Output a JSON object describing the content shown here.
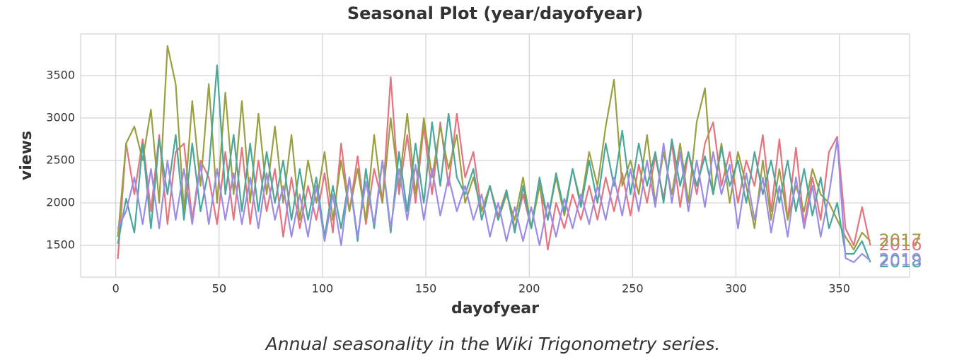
{
  "chart_data": {
    "type": "line",
    "title": "Seasonal Plot (year/dayofyear)",
    "xlabel": "dayofyear",
    "ylabel": "views",
    "caption": "Annual seasonality in the Wiki Trigonometry series.",
    "x": [
      1,
      5,
      9,
      13,
      17,
      21,
      25,
      29,
      33,
      37,
      41,
      45,
      49,
      53,
      57,
      61,
      65,
      69,
      73,
      77,
      81,
      85,
      89,
      93,
      97,
      101,
      105,
      109,
      113,
      117,
      121,
      125,
      129,
      133,
      137,
      141,
      145,
      149,
      153,
      157,
      161,
      165,
      169,
      173,
      177,
      181,
      185,
      189,
      193,
      197,
      201,
      205,
      209,
      213,
      217,
      221,
      225,
      229,
      233,
      237,
      241,
      245,
      249,
      253,
      257,
      261,
      265,
      269,
      273,
      277,
      281,
      285,
      289,
      293,
      297,
      301,
      305,
      309,
      313,
      317,
      321,
      325,
      329,
      333,
      337,
      341,
      345,
      349,
      353,
      357,
      361,
      365
    ],
    "series": [
      {
        "name": "2016",
        "color": "#e8737f",
        "values": [
          1340,
          2700,
          2100,
          2750,
          1900,
          2800,
          1750,
          2600,
          2700,
          1800,
          2500,
          2300,
          1750,
          2600,
          1800,
          2650,
          1750,
          2500,
          1900,
          2400,
          1600,
          2300,
          1700,
          2200,
          1800,
          2350,
          1650,
          2700,
          1900,
          2550,
          1750,
          2400,
          2000,
          3480,
          2100,
          2800,
          2000,
          2900,
          2100,
          2950,
          2200,
          3050,
          2300,
          2600,
          1900,
          2200,
          1850,
          2150,
          1700,
          2100,
          1700,
          2250,
          1450,
          2000,
          1700,
          2100,
          1800,
          2200,
          1800,
          2300,
          1900,
          2350,
          1850,
          2450,
          2000,
          2550,
          2050,
          2700,
          1950,
          2600,
          2100,
          2700,
          2950,
          2200,
          2600,
          2000,
          2500,
          2200,
          2800,
          1900,
          2750,
          1800,
          2650,
          1750,
          2300,
          1800,
          2600,
          2780,
          1700,
          1500,
          1950,
          1500
        ]
      },
      {
        "name": "2017",
        "color": "#9aa040",
        "values": [
          1600,
          2700,
          2900,
          2500,
          3100,
          2000,
          3850,
          3400,
          1900,
          3200,
          2200,
          3400,
          2000,
          3300,
          2100,
          3200,
          2000,
          3050,
          2100,
          2900,
          2000,
          2800,
          1800,
          2500,
          2000,
          2600,
          1800,
          2500,
          1900,
          2400,
          1800,
          2800,
          2000,
          3000,
          2200,
          3050,
          2100,
          3000,
          2300,
          2900,
          2400,
          2800,
          2000,
          2300,
          1900,
          2200,
          1800,
          2100,
          1800,
          2300,
          1700,
          2200,
          1800,
          2300,
          1850,
          2400,
          2000,
          2600,
          2200,
          2900,
          3450,
          2200,
          2500,
          2100,
          2800,
          2000,
          2600,
          2100,
          2700,
          2000,
          2950,
          3350,
          2100,
          2700,
          2000,
          2600,
          2200,
          1700,
          2500,
          1800,
          2400,
          1800,
          2200,
          1900,
          2400,
          2100,
          2000,
          1800,
          1600,
          1450,
          1650,
          1550
        ]
      },
      {
        "name": "2018",
        "color": "#4aa79c",
        "values": [
          1520,
          2050,
          1650,
          2700,
          1700,
          2750,
          2100,
          2800,
          1800,
          2700,
          1900,
          2400,
          3620,
          2100,
          2800,
          1900,
          2700,
          1900,
          2600,
          2000,
          2500,
          1800,
          2400,
          1800,
          2300,
          1600,
          2200,
          1700,
          2300,
          1550,
          2400,
          1700,
          2500,
          1650,
          2600,
          1900,
          2700,
          2000,
          2950,
          2200,
          3050,
          2300,
          2100,
          2400,
          1800,
          2200,
          1800,
          2150,
          1650,
          2200,
          1700,
          2300,
          1800,
          2350,
          1900,
          2400,
          1950,
          2500,
          2000,
          2700,
          2200,
          2850,
          2100,
          2700,
          2200,
          2600,
          2000,
          2750,
          2200,
          2600,
          2200,
          2550,
          2100,
          2650,
          2200,
          2500,
          2000,
          2600,
          2100,
          2500,
          2000,
          2500,
          1900,
          2400,
          1850,
          2300,
          1700,
          2000,
          1400,
          1400,
          1550,
          1300
        ]
      },
      {
        "name": "2019",
        "color": "#9b8ce8",
        "values": [
          1700,
          1900,
          2300,
          1750,
          2400,
          1700,
          2500,
          1800,
          2400,
          1750,
          2450,
          1750,
          2400,
          1800,
          2350,
          1750,
          2300,
          1700,
          2350,
          1800,
          2200,
          1600,
          2100,
          1600,
          2200,
          1550,
          2100,
          1500,
          2300,
          1600,
          2250,
          1750,
          2500,
          1700,
          2400,
          1800,
          2450,
          1800,
          2400,
          1850,
          2300,
          1900,
          2200,
          1800,
          2100,
          1600,
          2000,
          1550,
          1950,
          1550,
          1950,
          1500,
          2000,
          1600,
          2050,
          1700,
          2100,
          1750,
          2200,
          1800,
          2300,
          1850,
          2400,
          1900,
          2500,
          1950,
          2700,
          2000,
          2600,
          1900,
          2500,
          1950,
          2600,
          2100,
          2450,
          1700,
          2350,
          1800,
          2300,
          1650,
          2200,
          1600,
          2300,
          1700,
          2200,
          1600,
          2100,
          2750,
          1350,
          1300,
          1400,
          1320
        ]
      }
    ],
    "xlim": [
      -17,
      384
    ],
    "ylim": [
      1125,
      3990
    ],
    "xticks": [
      0,
      50,
      100,
      150,
      200,
      250,
      300,
      350
    ],
    "yticks": [
      1500,
      2000,
      2500,
      3000,
      3500
    ],
    "grid": true
  }
}
